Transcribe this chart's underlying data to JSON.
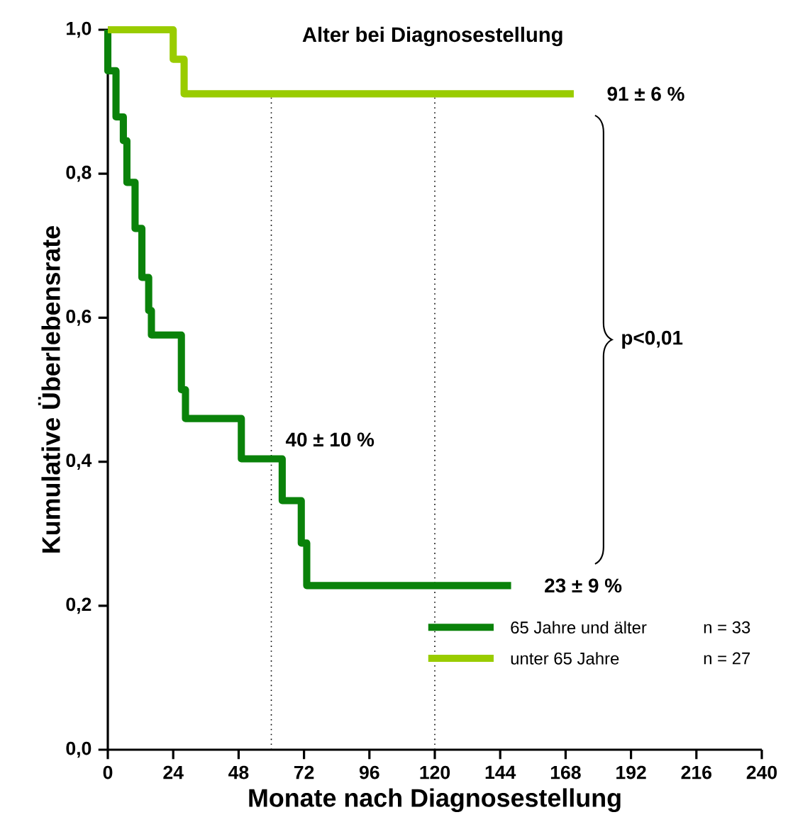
{
  "chart_data": {
    "type": "step",
    "title": "Alter bei Diagnosestellung",
    "xlabel": "Monate nach Diagnosestellung",
    "ylabel": "Kumulative Überlebensrate",
    "series": [
      {
        "name": "65 Jahre und älter",
        "color": "#0a820a",
        "x": [
          0,
          0,
          3,
          5.7,
          7,
          10,
          12.5,
          15,
          16,
          27,
          28.5,
          49,
          64,
          71,
          73,
          148
        ],
        "values": [
          1.0,
          0.943,
          0.879,
          0.846,
          0.788,
          0.724,
          0.656,
          0.61,
          0.576,
          0.5,
          0.46,
          0.404,
          0.346,
          0.287,
          0.228,
          0.228
        ]
      },
      {
        "name": "unter 65 Jahre",
        "color": "#99cc00",
        "x": [
          0,
          24,
          28,
          171
        ],
        "values": [
          1.0,
          0.959,
          0.911,
          0.911
        ]
      }
    ],
    "xlim": [
      0,
      240
    ],
    "xticks": [
      0,
      24,
      48,
      72,
      96,
      120,
      144,
      168,
      192,
      216,
      240
    ],
    "ylim": [
      0,
      1
    ],
    "yticks": [
      {
        "value": 0,
        "label": "0,0"
      },
      {
        "value": 0.2,
        "label": "0,2"
      },
      {
        "value": 0.4,
        "label": "0,4"
      },
      {
        "value": 0.6,
        "label": "0,6"
      },
      {
        "value": 0.8,
        "label": "0,8"
      },
      {
        "value": 1,
        "label": "1,0"
      }
    ],
    "ref_lines": [
      {
        "axis": "x",
        "value": 60,
        "label": null,
        "line_style": "dotted",
        "color": "#000000"
      },
      {
        "axis": "x",
        "value": 120,
        "label": null,
        "line_style": "dotted",
        "color": "#000000"
      }
    ],
    "annotations": [
      {
        "text": "91 ± 6 %",
        "x": 171,
        "y": 0.911
      },
      {
        "text": "40 ± 10 %",
        "x": 60,
        "y": 0.404
      },
      {
        "text": "23 ± 9 %",
        "x": 148,
        "y": 0.228
      },
      "p<0,01",
      "n = 33",
      "n = 27"
    ],
    "legend": "bottom right",
    "grid": false,
    "marker": "none",
    "line_style": "solid"
  }
}
